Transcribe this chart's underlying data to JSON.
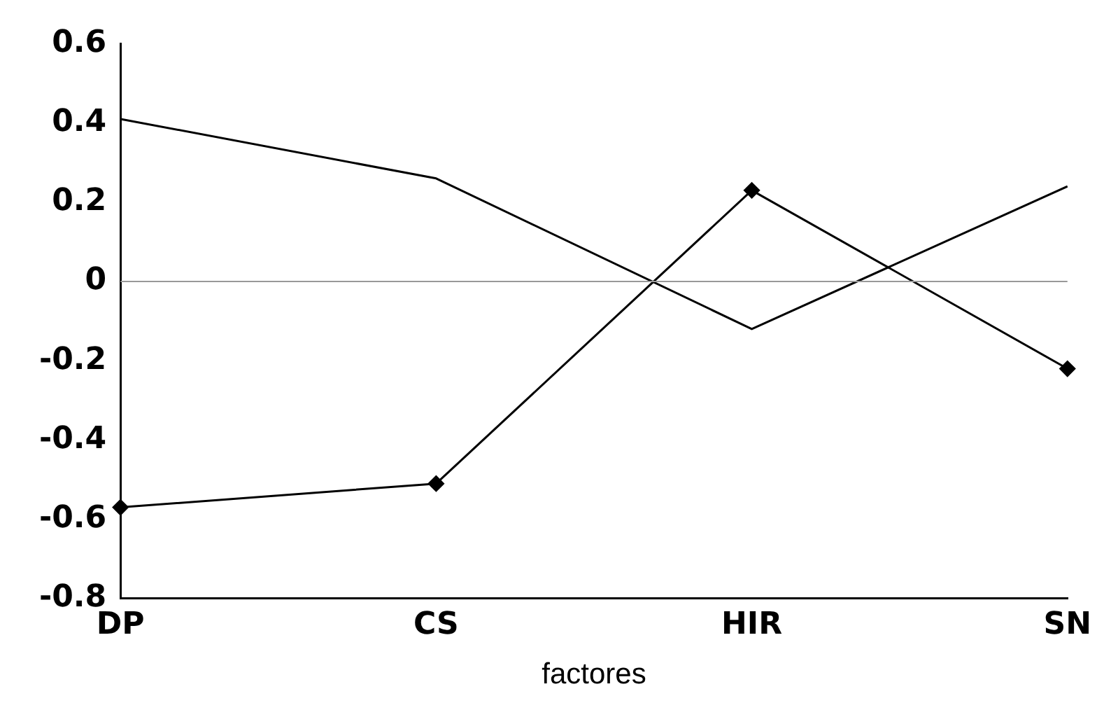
{
  "chart_data": {
    "type": "line",
    "xlabel": "factores",
    "categories": [
      "DP",
      "CS",
      "HIR",
      "SN"
    ],
    "series": [
      {
        "color": "#000000",
        "values": [
          0.41,
          0.26,
          -0.12,
          0.24
        ],
        "marker": "none"
      },
      {
        "color": "#000000",
        "values": [
          -0.57,
          -0.51,
          0.23,
          -0.22
        ],
        "marker": "diamond"
      }
    ],
    "ylim": [
      -0.8,
      0.6
    ],
    "yticks": [
      -0.8,
      -0.6,
      -0.4,
      -0.2,
      {
        "value": 0,
        "label": "0"
      },
      0.2,
      0.4,
      0.6
    ],
    "ref_lines": [
      {
        "axis": "y",
        "value": 0,
        "color": "#999999"
      }
    ],
    "grid": false,
    "legend": false
  }
}
